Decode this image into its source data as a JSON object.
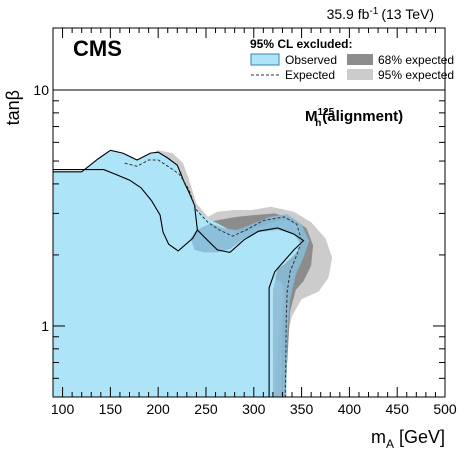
{
  "chart_data": {
    "type": "area",
    "header_lumi": "35.9 fb",
    "header_lumi_sup": "-1",
    "header_energy": "(13 TeV)",
    "experiment": "CMS",
    "scenario_base": "M",
    "scenario_sup": "125",
    "scenario_sub": "h",
    "scenario_suffix": "(alignment)",
    "xlabel_main": "m",
    "xlabel_sub": "A",
    "xlabel_unit": "[GeV]",
    "ylabel": "tanβ",
    "xlim": [
      90,
      500
    ],
    "ylim": [
      0.5,
      10
    ],
    "y_scale": "log",
    "x_ticks": [
      100,
      150,
      200,
      250,
      300,
      350,
      400,
      450,
      500
    ],
    "x_tick_labels": [
      "100",
      "150",
      "200",
      "250",
      "300",
      "350",
      "400",
      "450",
      "500"
    ],
    "y_tick_values": [
      1,
      10
    ],
    "y_tick_labels": [
      "1",
      "10"
    ],
    "legend": {
      "title": "95% CL excluded:",
      "entries": [
        {
          "key": "observed",
          "label": "Observed",
          "style": "fill",
          "color": "#aee4f7",
          "border": "#3a7fb5"
        },
        {
          "key": "exp68",
          "label": "68% expected",
          "style": "fill",
          "color": "#8c8c8c"
        },
        {
          "key": "expected",
          "label": "Expected",
          "style": "dashed",
          "color": "#333333"
        },
        {
          "key": "exp95",
          "label": "95% expected",
          "style": "fill",
          "color": "#cccccc"
        }
      ]
    },
    "colors": {
      "observed": "#aee4f7",
      "observed_edge": "#000000",
      "observed_overlap": "#87bad6",
      "exp68": "#8c8c8c",
      "exp95": "#cccccc",
      "expected_line": "#333333"
    },
    "series": [
      {
        "key": "exp95",
        "points": [
          [
            140,
            5.2
          ],
          [
            150,
            5.55
          ],
          [
            162,
            5.35
          ],
          [
            175,
            5.0
          ],
          [
            190,
            5.3
          ],
          [
            200,
            5.55
          ],
          [
            215,
            5.4
          ],
          [
            226,
            4.9
          ],
          [
            232,
            4.2
          ],
          [
            240,
            3.3
          ],
          [
            252,
            2.9
          ],
          [
            262,
            3.05
          ],
          [
            280,
            3.1
          ],
          [
            298,
            3.1
          ],
          [
            318,
            3.2
          ],
          [
            342,
            3.05
          ],
          [
            360,
            2.75
          ],
          [
            375,
            2.35
          ],
          [
            382,
            1.95
          ],
          [
            378,
            1.6
          ],
          [
            368,
            1.4
          ],
          [
            350,
            1.3
          ],
          [
            340,
            1.1
          ],
          [
            336,
            0.95
          ],
          [
            332,
            0.5
          ],
          [
            322,
            0.5
          ],
          [
            326,
            0.95
          ],
          [
            330,
            1.35
          ],
          [
            330,
            1.5
          ],
          [
            322,
            1.62
          ],
          [
            305,
            1.7
          ],
          [
            292,
            1.72
          ],
          [
            282,
            1.62
          ],
          [
            275,
            1.55
          ],
          [
            262,
            1.72
          ],
          [
            250,
            1.82
          ],
          [
            235,
            1.78
          ],
          [
            222,
            1.8
          ],
          [
            212,
            1.9
          ],
          [
            210,
            2.2
          ],
          [
            210,
            2.8
          ],
          [
            205,
            3.4
          ],
          [
            195,
            4.2
          ],
          [
            180,
            4.5
          ],
          [
            160,
            4.45
          ],
          [
            145,
            4.6
          ]
        ]
      },
      {
        "key": "exp68",
        "points": [
          [
            152,
            5.3
          ],
          [
            165,
            5.1
          ],
          [
            180,
            5.0
          ],
          [
            193,
            5.3
          ],
          [
            202,
            5.3
          ],
          [
            215,
            4.95
          ],
          [
            224,
            4.5
          ],
          [
            230,
            3.7
          ],
          [
            238,
            3.05
          ],
          [
            250,
            2.75
          ],
          [
            265,
            2.82
          ],
          [
            282,
            2.9
          ],
          [
            300,
            2.95
          ],
          [
            322,
            3.0
          ],
          [
            340,
            2.85
          ],
          [
            355,
            2.6
          ],
          [
            362,
            2.2
          ],
          [
            360,
            1.8
          ],
          [
            352,
            1.55
          ],
          [
            344,
            1.42
          ],
          [
            338,
            1.15
          ],
          [
            333,
            0.5
          ],
          [
            328,
            0.5
          ],
          [
            330,
            1.0
          ],
          [
            333,
            1.4
          ],
          [
            328,
            1.55
          ],
          [
            316,
            1.62
          ],
          [
            300,
            1.68
          ],
          [
            285,
            1.72
          ],
          [
            270,
            1.8
          ],
          [
            255,
            1.9
          ],
          [
            243,
            1.9
          ],
          [
            232,
            1.95
          ],
          [
            225,
            2.05
          ],
          [
            222,
            2.45
          ],
          [
            222,
            2.9
          ],
          [
            210,
            3.5
          ],
          [
            200,
            4.3
          ],
          [
            180,
            4.6
          ],
          [
            160,
            4.6
          ]
        ]
      },
      {
        "key": "observed",
        "points": [
          [
            90,
            0.5
          ],
          [
            90,
            4.5
          ],
          [
            120,
            4.5
          ],
          [
            137,
            5.1
          ],
          [
            150,
            5.55
          ],
          [
            163,
            5.4
          ],
          [
            178,
            5.05
          ],
          [
            192,
            5.4
          ],
          [
            200,
            5.45
          ],
          [
            210,
            5.15
          ],
          [
            220,
            4.8
          ],
          [
            228,
            4.0
          ],
          [
            232,
            3.7
          ],
          [
            242,
            3.05
          ],
          [
            252,
            2.85
          ],
          [
            262,
            2.72
          ],
          [
            275,
            2.55
          ],
          [
            290,
            2.5
          ],
          [
            312,
            2.7
          ],
          [
            332,
            2.83
          ],
          [
            348,
            2.65
          ],
          [
            352,
            2.3
          ],
          [
            345,
            2.05
          ],
          [
            332,
            1.82
          ],
          [
            325,
            1.75
          ],
          [
            320,
            1.42
          ],
          [
            320,
            0.5
          ]
        ]
      },
      {
        "key": "observed_overlap",
        "points": [
          [
            255,
            2.72
          ],
          [
            268,
            2.6
          ],
          [
            282,
            2.55
          ],
          [
            298,
            2.7
          ],
          [
            316,
            2.9
          ],
          [
            335,
            2.98
          ],
          [
            350,
            2.7
          ],
          [
            358,
            2.3
          ],
          [
            352,
            1.95
          ],
          [
            344,
            1.65
          ],
          [
            338,
            1.3
          ],
          [
            335,
            0.9
          ],
          [
            334,
            0.5
          ],
          [
            320,
            0.5
          ],
          [
            320,
            1.42
          ],
          [
            325,
            1.75
          ],
          [
            332,
            1.82
          ],
          [
            345,
            2.05
          ],
          [
            350,
            2.2
          ],
          [
            342,
            2.45
          ],
          [
            325,
            2.55
          ],
          [
            305,
            2.5
          ],
          [
            290,
            2.35
          ],
          [
            275,
            2.12
          ],
          [
            262,
            2.05
          ],
          [
            248,
            2.05
          ],
          [
            238,
            2.1
          ],
          [
            234,
            2.35
          ],
          [
            240,
            2.55
          ]
        ]
      },
      {
        "key": "observed_outline",
        "points": [
          [
            90,
            4.5
          ],
          [
            120,
            4.5
          ],
          [
            137,
            5.1
          ],
          [
            150,
            5.55
          ],
          [
            163,
            5.4
          ],
          [
            178,
            5.05
          ],
          [
            192,
            5.4
          ],
          [
            200,
            5.45
          ],
          [
            210,
            5.15
          ],
          [
            220,
            4.8
          ],
          [
            228,
            4.0
          ],
          [
            232,
            3.7
          ],
          [
            238,
            3.25
          ],
          [
            241,
            2.55
          ],
          [
            236,
            2.35
          ],
          [
            221,
            2.08
          ],
          [
            211,
            2.22
          ],
          [
            205,
            2.5
          ],
          [
            202,
            2.95
          ],
          [
            193,
            3.4
          ],
          [
            182,
            3.85
          ],
          [
            170,
            4.15
          ],
          [
            155,
            4.4
          ],
          [
            143,
            4.6
          ],
          [
            125,
            4.6
          ],
          [
            105,
            4.6
          ],
          [
            90,
            4.6
          ]
        ]
      },
      {
        "key": "observed_outline_right",
        "points": [
          [
            241,
            2.55
          ],
          [
            252,
            2.3
          ],
          [
            262,
            2.1
          ],
          [
            275,
            2.05
          ],
          [
            290,
            2.32
          ],
          [
            305,
            2.52
          ],
          [
            325,
            2.6
          ],
          [
            342,
            2.45
          ],
          [
            352,
            2.3
          ],
          [
            342,
            2.1
          ],
          [
            330,
            1.85
          ],
          [
            322,
            1.7
          ],
          [
            316,
            1.45
          ],
          [
            316,
            0.5
          ]
        ]
      },
      {
        "key": "expected",
        "style": "dashed",
        "points": [
          [
            165,
            4.9
          ],
          [
            178,
            4.75
          ],
          [
            190,
            5.05
          ],
          [
            200,
            5.05
          ],
          [
            212,
            4.7
          ],
          [
            222,
            4.4
          ],
          [
            232,
            3.8
          ],
          [
            240,
            3.1
          ],
          [
            252,
            2.75
          ],
          [
            264,
            2.55
          ],
          [
            278,
            2.4
          ],
          [
            292,
            2.55
          ],
          [
            310,
            2.8
          ],
          [
            332,
            2.9
          ],
          [
            345,
            2.7
          ],
          [
            350,
            2.3
          ],
          [
            345,
            2.0
          ],
          [
            338,
            1.7
          ],
          [
            335,
            1.4
          ],
          [
            334,
            1.1
          ],
          [
            333,
            0.5
          ]
        ]
      }
    ]
  }
}
